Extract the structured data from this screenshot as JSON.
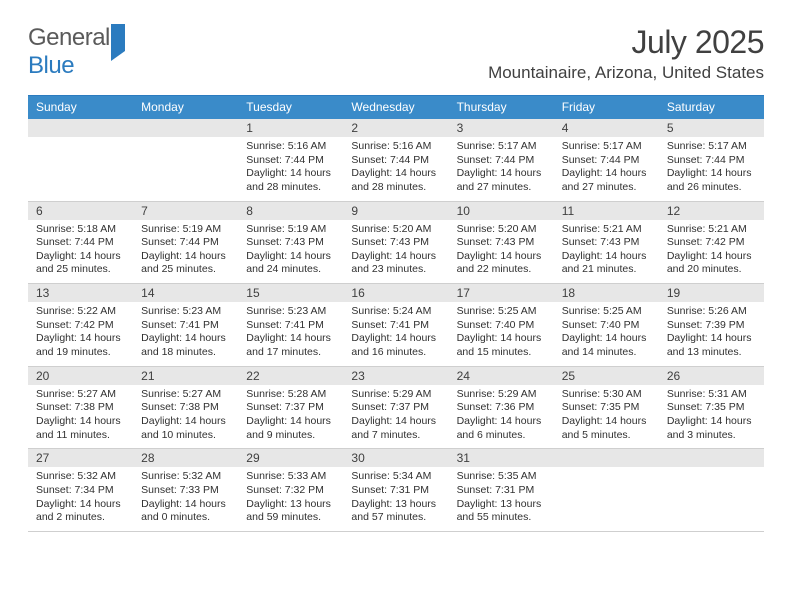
{
  "logo": {
    "word1": "General",
    "word2": "Blue"
  },
  "title": "July 2025",
  "location": "Mountainaire, Arizona, United States",
  "styling": {
    "accent_color": "#3a8bc9",
    "accent_border": "#2b7bbf",
    "daynum_bg": "#e7e7e7",
    "text_color": "#404040",
    "body_text": "#303030",
    "title_fontsize": 32,
    "location_fontsize": 17,
    "dayhead_fontsize": 12,
    "daynum_fontsize": 12,
    "body_fontsize": 10.5,
    "rule_color": "#cfcfcf"
  },
  "dayheads": [
    "Sunday",
    "Monday",
    "Tuesday",
    "Wednesday",
    "Thursday",
    "Friday",
    "Saturday"
  ],
  "weeks": [
    [
      {
        "blank": true
      },
      {
        "blank": true
      },
      {
        "n": "1",
        "sr": "Sunrise: 5:16 AM",
        "ss": "Sunset: 7:44 PM",
        "dl": "Daylight: 14 hours and 28 minutes."
      },
      {
        "n": "2",
        "sr": "Sunrise: 5:16 AM",
        "ss": "Sunset: 7:44 PM",
        "dl": "Daylight: 14 hours and 28 minutes."
      },
      {
        "n": "3",
        "sr": "Sunrise: 5:17 AM",
        "ss": "Sunset: 7:44 PM",
        "dl": "Daylight: 14 hours and 27 minutes."
      },
      {
        "n": "4",
        "sr": "Sunrise: 5:17 AM",
        "ss": "Sunset: 7:44 PM",
        "dl": "Daylight: 14 hours and 27 minutes."
      },
      {
        "n": "5",
        "sr": "Sunrise: 5:17 AM",
        "ss": "Sunset: 7:44 PM",
        "dl": "Daylight: 14 hours and 26 minutes."
      }
    ],
    [
      {
        "n": "6",
        "sr": "Sunrise: 5:18 AM",
        "ss": "Sunset: 7:44 PM",
        "dl": "Daylight: 14 hours and 25 minutes."
      },
      {
        "n": "7",
        "sr": "Sunrise: 5:19 AM",
        "ss": "Sunset: 7:44 PM",
        "dl": "Daylight: 14 hours and 25 minutes."
      },
      {
        "n": "8",
        "sr": "Sunrise: 5:19 AM",
        "ss": "Sunset: 7:43 PM",
        "dl": "Daylight: 14 hours and 24 minutes."
      },
      {
        "n": "9",
        "sr": "Sunrise: 5:20 AM",
        "ss": "Sunset: 7:43 PM",
        "dl": "Daylight: 14 hours and 23 minutes."
      },
      {
        "n": "10",
        "sr": "Sunrise: 5:20 AM",
        "ss": "Sunset: 7:43 PM",
        "dl": "Daylight: 14 hours and 22 minutes."
      },
      {
        "n": "11",
        "sr": "Sunrise: 5:21 AM",
        "ss": "Sunset: 7:43 PM",
        "dl": "Daylight: 14 hours and 21 minutes."
      },
      {
        "n": "12",
        "sr": "Sunrise: 5:21 AM",
        "ss": "Sunset: 7:42 PM",
        "dl": "Daylight: 14 hours and 20 minutes."
      }
    ],
    [
      {
        "n": "13",
        "sr": "Sunrise: 5:22 AM",
        "ss": "Sunset: 7:42 PM",
        "dl": "Daylight: 14 hours and 19 minutes."
      },
      {
        "n": "14",
        "sr": "Sunrise: 5:23 AM",
        "ss": "Sunset: 7:41 PM",
        "dl": "Daylight: 14 hours and 18 minutes."
      },
      {
        "n": "15",
        "sr": "Sunrise: 5:23 AM",
        "ss": "Sunset: 7:41 PM",
        "dl": "Daylight: 14 hours and 17 minutes."
      },
      {
        "n": "16",
        "sr": "Sunrise: 5:24 AM",
        "ss": "Sunset: 7:41 PM",
        "dl": "Daylight: 14 hours and 16 minutes."
      },
      {
        "n": "17",
        "sr": "Sunrise: 5:25 AM",
        "ss": "Sunset: 7:40 PM",
        "dl": "Daylight: 14 hours and 15 minutes."
      },
      {
        "n": "18",
        "sr": "Sunrise: 5:25 AM",
        "ss": "Sunset: 7:40 PM",
        "dl": "Daylight: 14 hours and 14 minutes."
      },
      {
        "n": "19",
        "sr": "Sunrise: 5:26 AM",
        "ss": "Sunset: 7:39 PM",
        "dl": "Daylight: 14 hours and 13 minutes."
      }
    ],
    [
      {
        "n": "20",
        "sr": "Sunrise: 5:27 AM",
        "ss": "Sunset: 7:38 PM",
        "dl": "Daylight: 14 hours and 11 minutes."
      },
      {
        "n": "21",
        "sr": "Sunrise: 5:27 AM",
        "ss": "Sunset: 7:38 PM",
        "dl": "Daylight: 14 hours and 10 minutes."
      },
      {
        "n": "22",
        "sr": "Sunrise: 5:28 AM",
        "ss": "Sunset: 7:37 PM",
        "dl": "Daylight: 14 hours and 9 minutes."
      },
      {
        "n": "23",
        "sr": "Sunrise: 5:29 AM",
        "ss": "Sunset: 7:37 PM",
        "dl": "Daylight: 14 hours and 7 minutes."
      },
      {
        "n": "24",
        "sr": "Sunrise: 5:29 AM",
        "ss": "Sunset: 7:36 PM",
        "dl": "Daylight: 14 hours and 6 minutes."
      },
      {
        "n": "25",
        "sr": "Sunrise: 5:30 AM",
        "ss": "Sunset: 7:35 PM",
        "dl": "Daylight: 14 hours and 5 minutes."
      },
      {
        "n": "26",
        "sr": "Sunrise: 5:31 AM",
        "ss": "Sunset: 7:35 PM",
        "dl": "Daylight: 14 hours and 3 minutes."
      }
    ],
    [
      {
        "n": "27",
        "sr": "Sunrise: 5:32 AM",
        "ss": "Sunset: 7:34 PM",
        "dl": "Daylight: 14 hours and 2 minutes."
      },
      {
        "n": "28",
        "sr": "Sunrise: 5:32 AM",
        "ss": "Sunset: 7:33 PM",
        "dl": "Daylight: 14 hours and 0 minutes."
      },
      {
        "n": "29",
        "sr": "Sunrise: 5:33 AM",
        "ss": "Sunset: 7:32 PM",
        "dl": "Daylight: 13 hours and 59 minutes."
      },
      {
        "n": "30",
        "sr": "Sunrise: 5:34 AM",
        "ss": "Sunset: 7:31 PM",
        "dl": "Daylight: 13 hours and 57 minutes."
      },
      {
        "n": "31",
        "sr": "Sunrise: 5:35 AM",
        "ss": "Sunset: 7:31 PM",
        "dl": "Daylight: 13 hours and 55 minutes."
      },
      {
        "blank": true
      },
      {
        "blank": true
      }
    ]
  ]
}
